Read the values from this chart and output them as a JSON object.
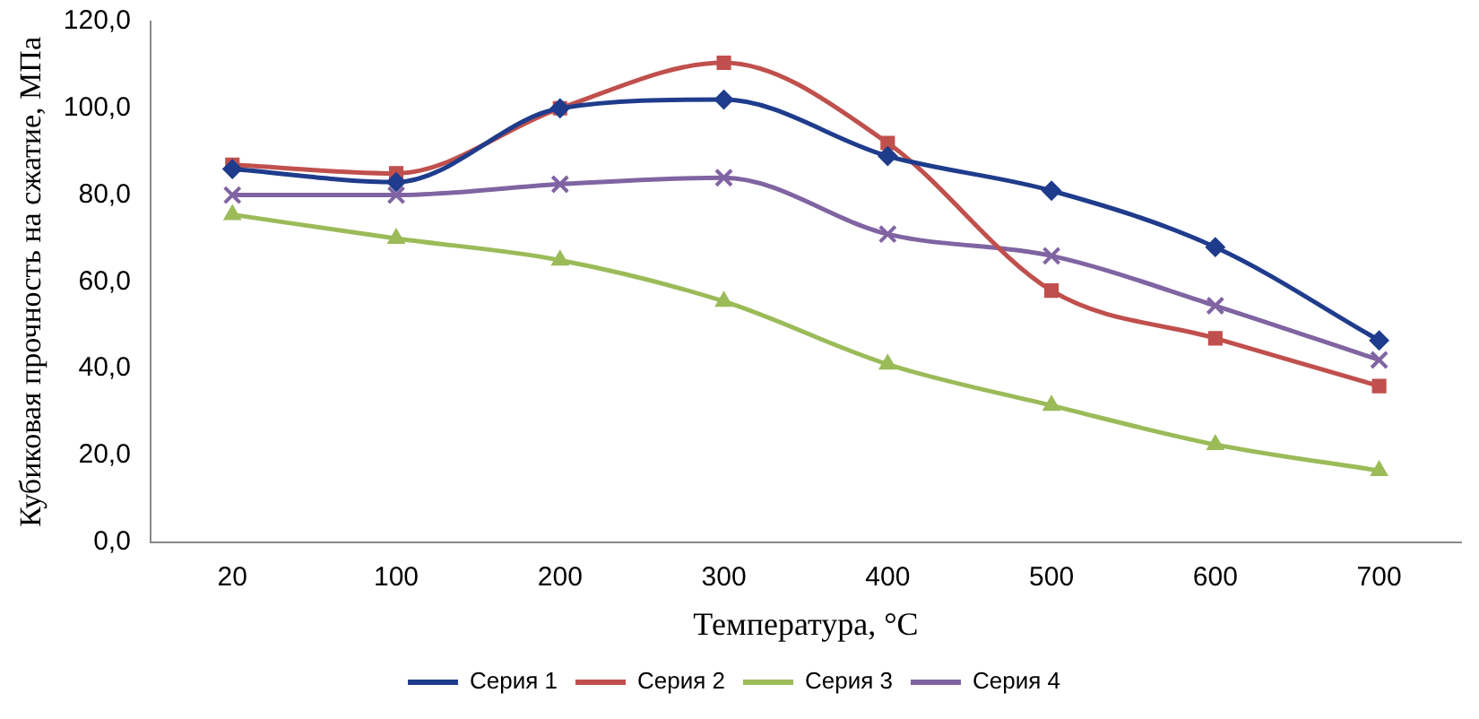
{
  "chart_data": {
    "type": "line",
    "xlabel": "Температура, °C",
    "ylabel": "Кубиковая прочность на сжатие, МПа",
    "categories": [
      "20",
      "100",
      "200",
      "300",
      "400",
      "500",
      "600",
      "700"
    ],
    "series": [
      {
        "name": "Серия 1",
        "color": "#1f3c8c",
        "marker": "diamond",
        "values": [
          86,
          83,
          100,
          102,
          89,
          81,
          68,
          46.5
        ]
      },
      {
        "name": "Серия 2",
        "color": "#c0504d",
        "marker": "square",
        "values": [
          87,
          85,
          100,
          110.5,
          92,
          58,
          47,
          36
        ]
      },
      {
        "name": "Серия 3",
        "color": "#9bbb59",
        "marker": "triangle",
        "values": [
          75.5,
          70,
          65,
          55.5,
          41,
          31.5,
          22.5,
          16.5
        ]
      },
      {
        "name": "Серия 4",
        "color": "#8064a2",
        "marker": "cross",
        "values": [
          80,
          80,
          82.5,
          84,
          71,
          66,
          54.5,
          42
        ]
      }
    ],
    "ylim": [
      0,
      120
    ],
    "yticks": [
      {
        "value": 0,
        "label": "0,0"
      },
      {
        "value": 20,
        "label": "20,0"
      },
      {
        "value": 40,
        "label": "40,0"
      },
      {
        "value": 60,
        "label": "60,0"
      },
      {
        "value": 80,
        "label": "80,0"
      },
      {
        "value": 100,
        "label": "100,0"
      },
      {
        "value": 120,
        "label": "120,0"
      }
    ],
    "grid": false,
    "legend": "bottom",
    "line_style": "solid"
  }
}
